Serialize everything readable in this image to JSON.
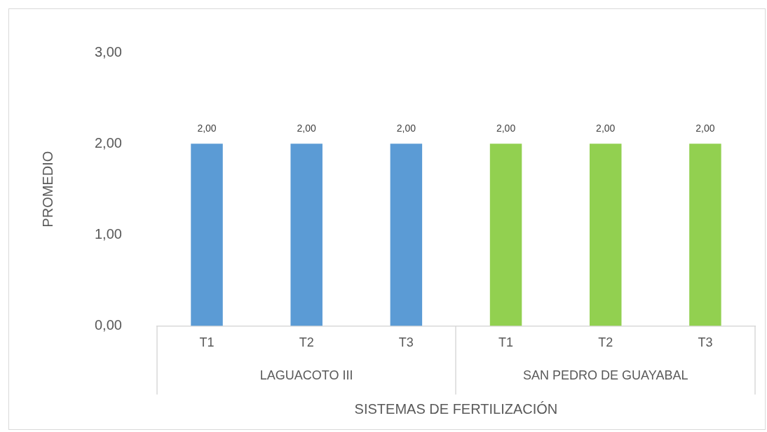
{
  "chart_data": {
    "type": "bar",
    "xlabel": "SISTEMAS DE FERTILIZACIÓN",
    "ylabel": "PROMEDIO",
    "categories": [
      "T1",
      "T2",
      "T3",
      "T1",
      "T2",
      "T3"
    ],
    "series": [
      {
        "color": "#5b9bd5",
        "values": [
          2,
          2,
          2,
          null,
          null,
          null
        ],
        "value_labels": [
          "2,00",
          "2,00",
          "2,00",
          null,
          null,
          null
        ]
      },
      {
        "color": "#92d050",
        "values": [
          null,
          null,
          null,
          2,
          2,
          2
        ],
        "value_labels": [
          null,
          null,
          null,
          "2,00",
          "2,00",
          "2,00"
        ]
      }
    ],
    "ylim": [
      0,
      3
    ],
    "yticks": [
      {
        "value": 0,
        "label": "0,00"
      },
      {
        "value": 1,
        "label": "1,00"
      },
      {
        "value": 2,
        "label": "2,00"
      },
      {
        "value": 3,
        "label": "3,00"
      }
    ],
    "annotations": [
      "LAGUACOTO III",
      "SAN PEDRO DE GUAYABAL"
    ],
    "grid": false,
    "legend": false
  }
}
